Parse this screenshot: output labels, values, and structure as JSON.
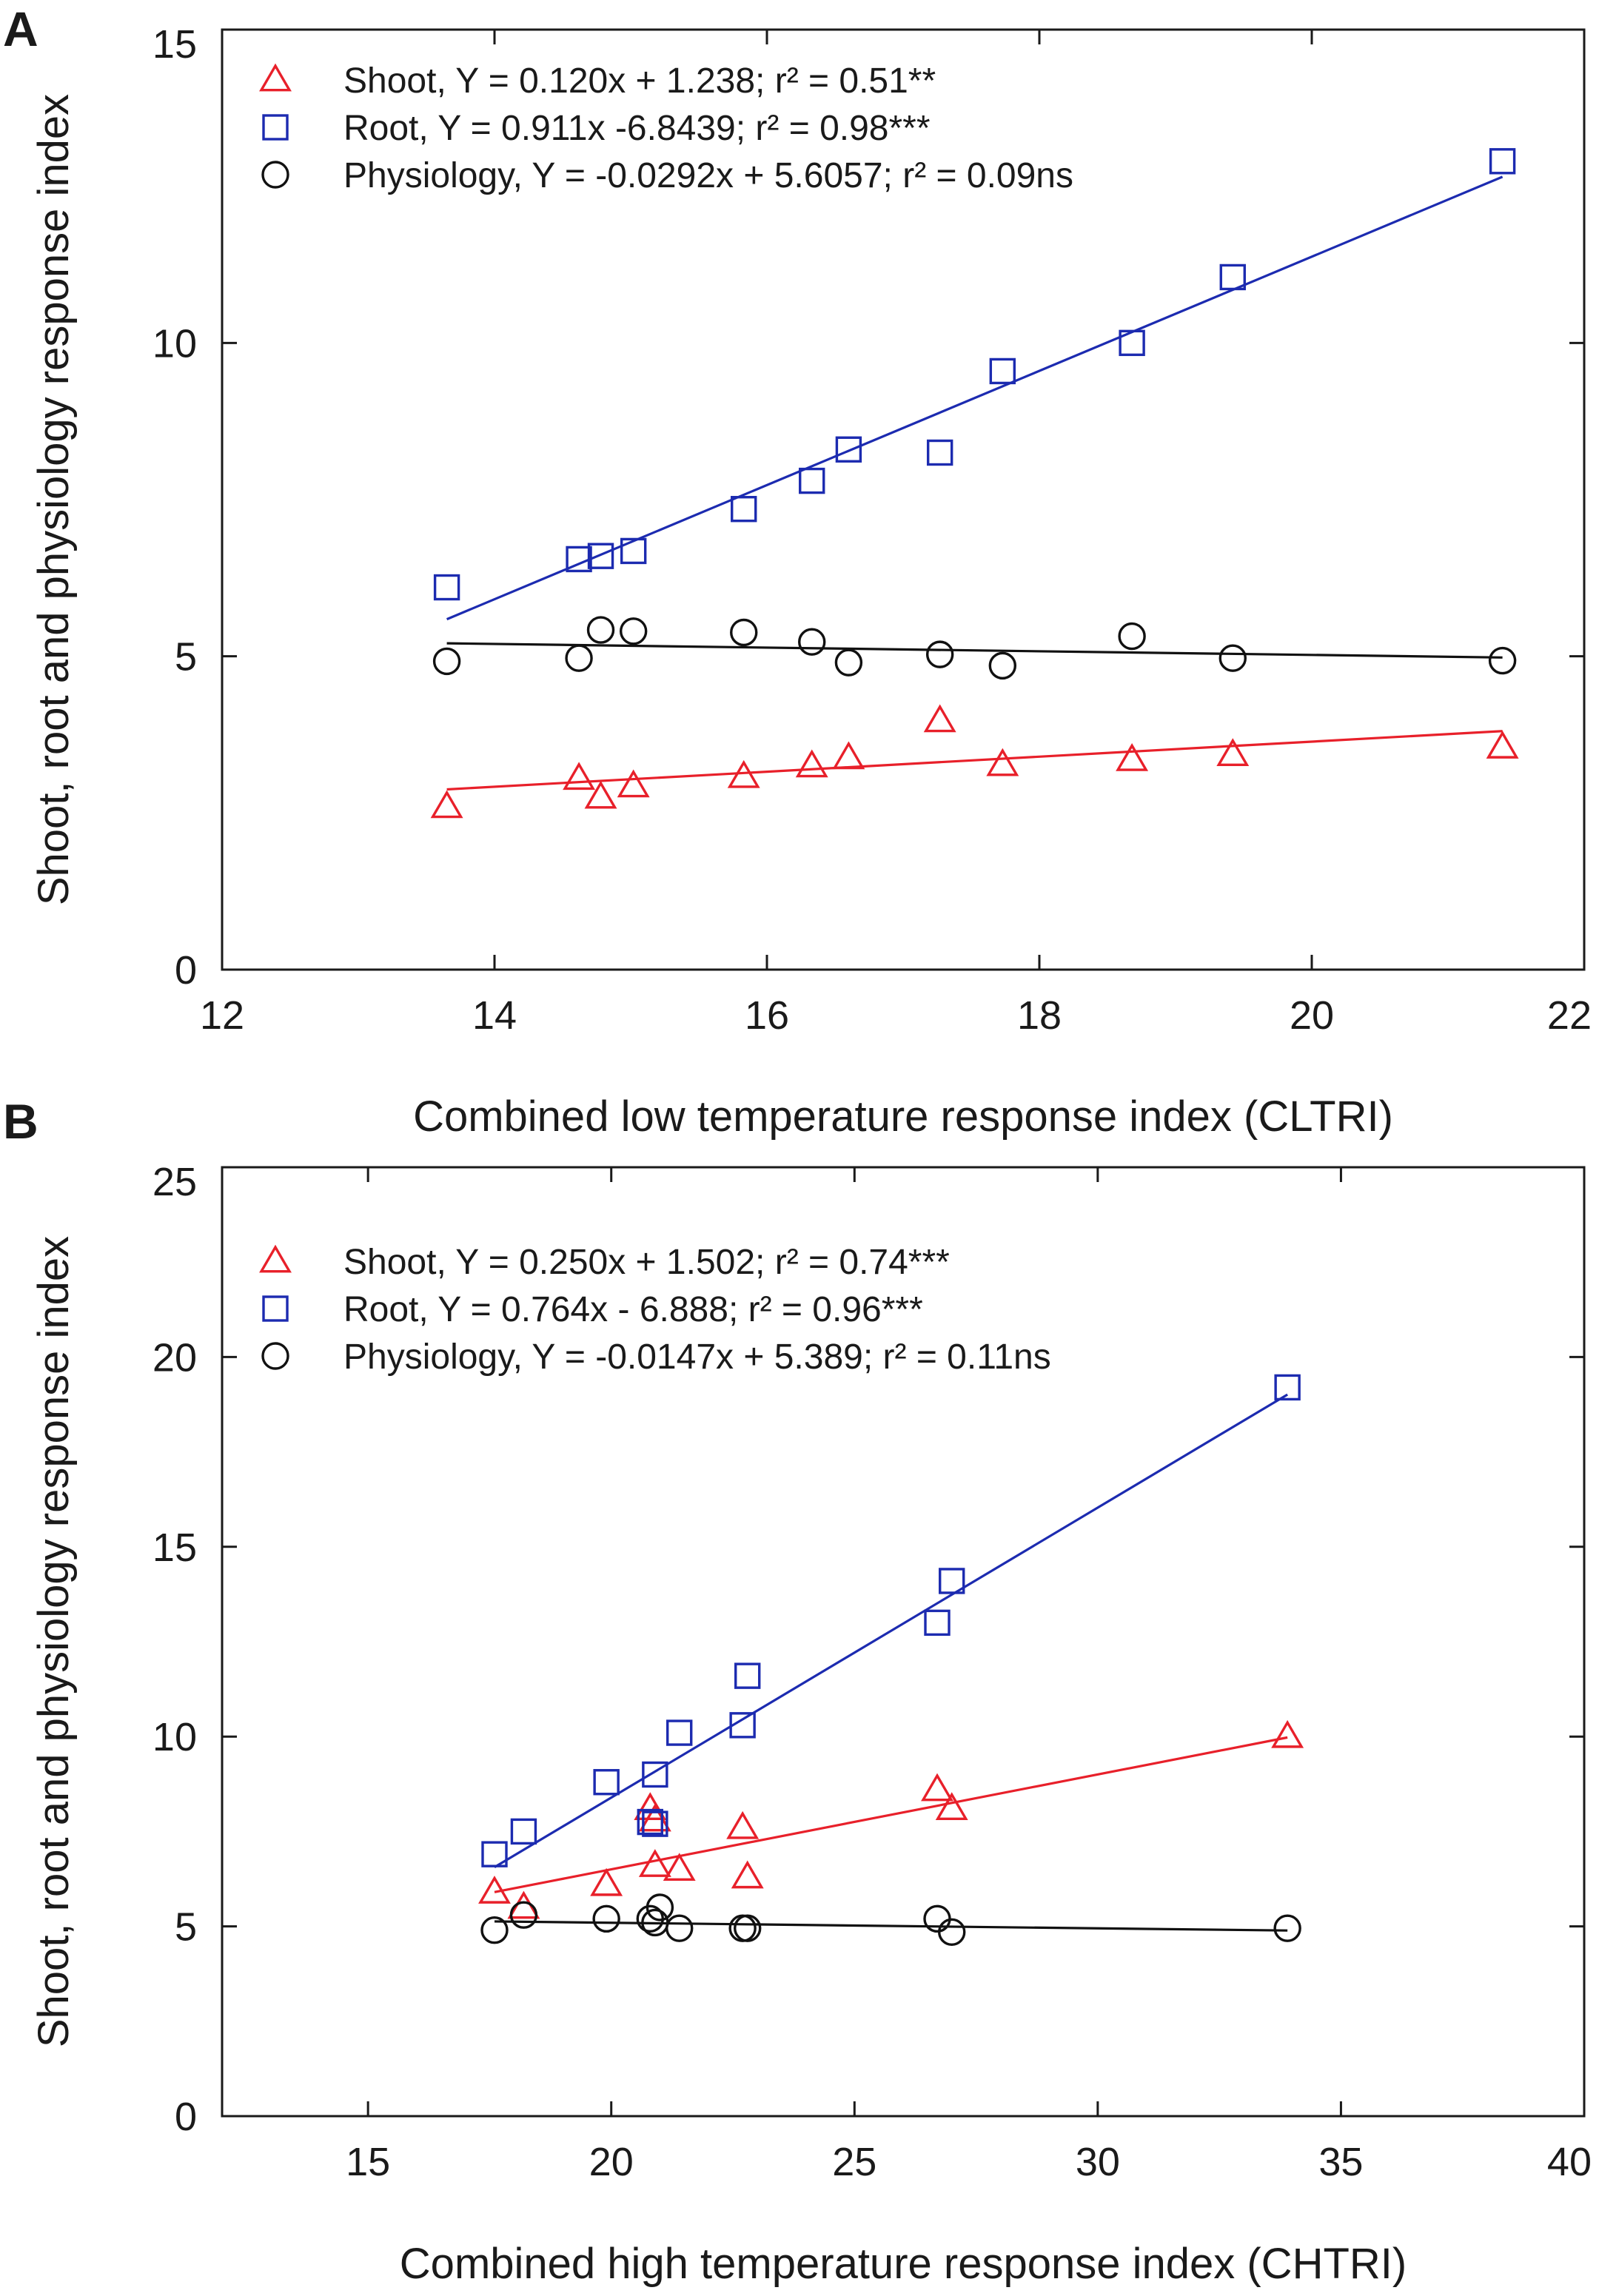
{
  "chart_data": [
    {
      "type": "scatter",
      "panel": "A",
      "xlabel": "Combined low temperature response index (CLTRI)",
      "ylabel": "Shoot, root and physiology response index",
      "xlim": [
        12,
        22
      ],
      "ylim": [
        0,
        15
      ],
      "xticks": [
        12,
        14,
        16,
        18,
        20,
        22
      ],
      "yticks": [
        0,
        5,
        10,
        15
      ],
      "grid": false,
      "legend_position": "top-left",
      "series": [
        {
          "name": "Shoot",
          "legend_label": "Shoot, Y =  0.120x + 1.238; r² = 0.51**",
          "marker": "triangle",
          "color": "#e8202a",
          "slope": 0.12,
          "intercept": 1.238,
          "fit_x": [
            13.65,
            21.4
          ],
          "x": [
            13.65,
            14.62,
            14.78,
            15.02,
            15.83,
            16.33,
            16.6,
            17.27,
            17.73,
            18.68,
            19.42,
            21.4
          ],
          "y": [
            2.6,
            3.05,
            2.75,
            2.93,
            3.08,
            3.25,
            3.38,
            3.97,
            3.27,
            3.35,
            3.43,
            3.55
          ]
        },
        {
          "name": "Root",
          "legend_label": "Root, Y =  0.911x -6.8439; r² = 0.98***",
          "marker": "square",
          "color": "#1c2bb0",
          "slope": 0.911,
          "intercept": -6.8439,
          "fit_x": [
            13.65,
            21.4
          ],
          "x": [
            13.65,
            14.62,
            14.78,
            15.02,
            15.83,
            16.33,
            16.6,
            17.27,
            17.73,
            18.68,
            19.42,
            21.4
          ],
          "y": [
            6.1,
            6.55,
            6.6,
            6.68,
            7.35,
            7.8,
            8.3,
            8.25,
            9.55,
            10.0,
            11.05,
            12.9
          ]
        },
        {
          "name": "Physiology",
          "legend_label": "Physiology, Y = -0.0292x + 5.6057; r² = 0.09ns",
          "marker": "circle",
          "color": "#111111",
          "slope": -0.0292,
          "intercept": 5.6057,
          "fit_x": [
            13.65,
            21.4
          ],
          "x": [
            13.65,
            14.62,
            14.78,
            15.02,
            15.83,
            16.33,
            16.6,
            17.27,
            17.73,
            18.68,
            19.42,
            21.4
          ],
          "y": [
            4.92,
            4.97,
            5.42,
            5.4,
            5.38,
            5.23,
            4.9,
            5.03,
            4.85,
            5.32,
            4.97,
            4.93
          ]
        }
      ]
    },
    {
      "type": "scatter",
      "panel": "B",
      "xlabel": "Combined high temperature response index (CHTRI)",
      "ylabel": "Shoot, root and physiology response index",
      "xlim": [
        12,
        40
      ],
      "ylim": [
        0,
        25
      ],
      "xticks": [
        15,
        20,
        25,
        30,
        35,
        40
      ],
      "yticks": [
        0,
        5,
        10,
        15,
        20,
        25
      ],
      "grid": false,
      "legend_position": "top-left",
      "series": [
        {
          "name": "Shoot",
          "legend_label": "Shoot, Y =  0.250x + 1.502; r² = 0.74***",
          "marker": "triangle",
          "color": "#e8202a",
          "slope": 0.25,
          "intercept": 1.502,
          "fit_x": [
            17.6,
            33.9
          ],
          "x": [
            17.6,
            18.2,
            19.9,
            20.8,
            20.9,
            20.9,
            21.4,
            22.7,
            22.8,
            26.7,
            27.0,
            33.9
          ],
          "y": [
            5.9,
            5.5,
            6.1,
            8.1,
            7.8,
            6.6,
            6.5,
            7.6,
            6.3,
            8.6,
            8.1,
            10.0
          ]
        },
        {
          "name": "Root",
          "legend_label": "Root, Y =  0.764x - 6.888; r² = 0.96***",
          "marker": "square",
          "color": "#1c2bb0",
          "slope": 0.764,
          "intercept": -6.888,
          "fit_x": [
            17.6,
            33.9
          ],
          "x": [
            17.6,
            18.2,
            19.9,
            20.8,
            20.9,
            20.9,
            21.4,
            22.7,
            22.8,
            26.7,
            27.0,
            33.9
          ],
          "y": [
            6.9,
            7.5,
            8.8,
            7.75,
            7.7,
            9.0,
            10.1,
            10.3,
            11.6,
            13.0,
            14.1,
            19.2
          ]
        },
        {
          "name": "Physiology",
          "legend_label": "Physiology, Y = -0.0147x + 5.389; r² = 0.11ns",
          "marker": "circle",
          "color": "#111111",
          "slope": -0.0147,
          "intercept": 5.389,
          "fit_x": [
            17.6,
            33.9
          ],
          "x": [
            17.6,
            18.2,
            19.9,
            20.8,
            20.9,
            21.0,
            21.4,
            22.7,
            22.8,
            26.7,
            27.0,
            33.9
          ],
          "y": [
            4.9,
            5.3,
            5.2,
            5.2,
            5.1,
            5.5,
            4.95,
            4.95,
            4.95,
            5.2,
            4.85,
            4.95
          ]
        }
      ]
    }
  ]
}
